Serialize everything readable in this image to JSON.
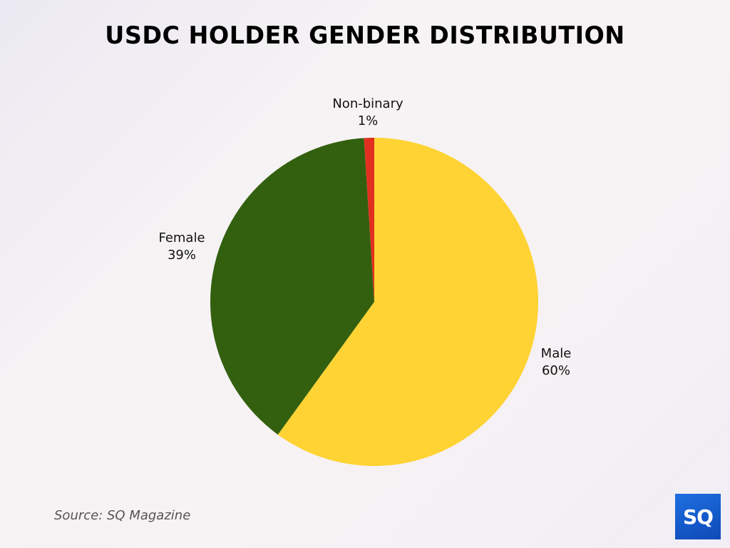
{
  "title": "USDC HOLDER GENDER DISTRIBUTION",
  "source": "Source: SQ Magazine",
  "logo": {
    "text": "SQ",
    "color": "#1a63d6"
  },
  "labels": {
    "non_binary": {
      "name": "Non-binary",
      "value": "1%"
    },
    "female": {
      "name": "Female",
      "value": "39%"
    },
    "male": {
      "name": "Male",
      "value": "60%"
    }
  },
  "chart_data": {
    "type": "pie",
    "title": "USDC HOLDER GENDER DISTRIBUTION",
    "categories": [
      "Male",
      "Female",
      "Non-binary"
    ],
    "values": [
      60,
      39,
      1
    ],
    "unit": "%",
    "colors": [
      "#fed333",
      "#33600f",
      "#e1301f"
    ],
    "start_angle": "12 o'clock, clockwise",
    "legend": "none (direct labels)",
    "source": "SQ Magazine"
  }
}
